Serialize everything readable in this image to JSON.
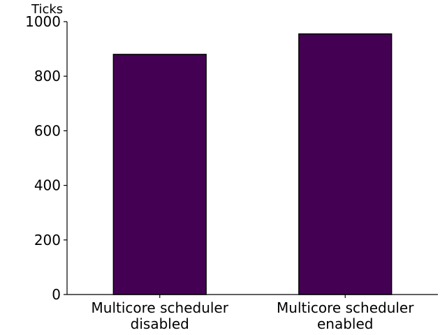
{
  "chart_data": {
    "type": "bar",
    "title": "",
    "xlabel": "",
    "ylabel": "Ticks",
    "categories": [
      [
        "Multicore scheduler",
        "disabled"
      ],
      [
        "Multicore scheduler",
        "enabled"
      ]
    ],
    "values": [
      880,
      955
    ],
    "ylim": [
      0,
      1000
    ],
    "yticks": [
      0,
      200,
      400,
      600,
      800,
      1000
    ],
    "grid": false,
    "legend": "none",
    "bar_color": "#440154",
    "bar_edge_color": "#000000"
  }
}
